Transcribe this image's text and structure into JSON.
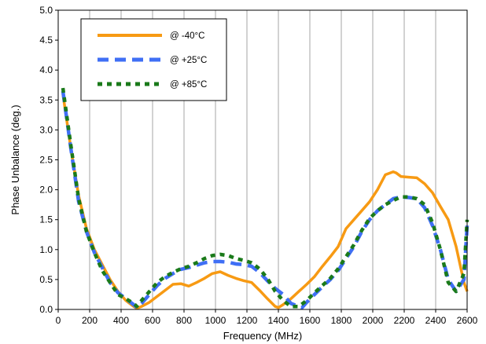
{
  "chart_data": {
    "type": "line",
    "title": "",
    "xlabel": "Frequency (MHz)",
    "ylabel": "Phase Unbalance (deg.)",
    "xlim": [
      0,
      2600
    ],
    "ylim": [
      0,
      5.0
    ],
    "x_ticks": [
      "0",
      "200",
      "400",
      "600",
      "800",
      "1000",
      "1200",
      "1400",
      "1600",
      "1800",
      "2000",
      "2200",
      "2400",
      "2600"
    ],
    "y_ticks": [
      "0.0",
      "0.5",
      "1.0",
      "1.5",
      "2.0",
      "2.5",
      "3.0",
      "3.5",
      "4.0",
      "4.5",
      "5.0"
    ],
    "grid": "vertical",
    "legend_position": "top-left",
    "series": [
      {
        "name": "@ -40°C",
        "color": "#f79a13",
        "style": "solid",
        "x": [
          30,
          80,
          130,
          180,
          230,
          280,
          330,
          380,
          430,
          480,
          500,
          530,
          580,
          630,
          680,
          730,
          780,
          830,
          880,
          930,
          980,
          1030,
          1080,
          1130,
          1180,
          1230,
          1280,
          1330,
          1380,
          1400,
          1430,
          1480,
          1530,
          1580,
          1630,
          1680,
          1730,
          1780,
          1830,
          1880,
          1930,
          1980,
          2030,
          2080,
          2130,
          2150,
          2180,
          2230,
          2280,
          2330,
          2380,
          2430,
          2480,
          2530,
          2580,
          2600
        ],
        "y": [
          3.6,
          2.7,
          1.9,
          1.35,
          1.0,
          0.75,
          0.5,
          0.3,
          0.15,
          0.05,
          0.02,
          0.05,
          0.12,
          0.22,
          0.32,
          0.42,
          0.43,
          0.39,
          0.45,
          0.52,
          0.6,
          0.63,
          0.57,
          0.52,
          0.48,
          0.45,
          0.32,
          0.18,
          0.05,
          0.03,
          0.08,
          0.18,
          0.3,
          0.42,
          0.55,
          0.72,
          0.88,
          1.05,
          1.35,
          1.5,
          1.65,
          1.8,
          2.0,
          2.25,
          2.3,
          2.28,
          2.22,
          2.21,
          2.2,
          2.1,
          1.95,
          1.72,
          1.5,
          1.05,
          0.45,
          0.3
        ]
      },
      {
        "name": "@ +25°C",
        "color": "#3f6ff5",
        "style": "dash",
        "x": [
          30,
          80,
          130,
          180,
          230,
          280,
          330,
          380,
          430,
          480,
          500,
          530,
          580,
          630,
          680,
          730,
          780,
          830,
          880,
          930,
          980,
          1030,
          1080,
          1130,
          1180,
          1230,
          1280,
          1330,
          1380,
          1430,
          1480,
          1530,
          1550,
          1580,
          1630,
          1680,
          1730,
          1780,
          1830,
          1880,
          1930,
          1980,
          2030,
          2080,
          2130,
          2180,
          2230,
          2280,
          2330,
          2380,
          2430,
          2480,
          2530,
          2580,
          2600
        ],
        "y": [
          3.65,
          2.7,
          1.8,
          1.3,
          0.95,
          0.7,
          0.45,
          0.28,
          0.18,
          0.08,
          0.03,
          0.1,
          0.25,
          0.4,
          0.52,
          0.6,
          0.67,
          0.7,
          0.74,
          0.78,
          0.8,
          0.8,
          0.79,
          0.76,
          0.75,
          0.72,
          0.62,
          0.48,
          0.35,
          0.25,
          0.1,
          0.05,
          0.03,
          0.12,
          0.25,
          0.38,
          0.5,
          0.65,
          0.85,
          1.05,
          1.3,
          1.5,
          1.65,
          1.75,
          1.85,
          1.88,
          1.87,
          1.85,
          1.7,
          1.4,
          1.0,
          0.5,
          0.3,
          0.5,
          1.4
        ]
      },
      {
        "name": "@ +85°C",
        "color": "#1a7a1a",
        "style": "dot",
        "x": [
          30,
          80,
          130,
          180,
          230,
          280,
          330,
          380,
          430,
          480,
          500,
          530,
          580,
          630,
          680,
          730,
          780,
          830,
          880,
          930,
          980,
          1030,
          1080,
          1130,
          1180,
          1230,
          1280,
          1330,
          1380,
          1430,
          1480,
          1530,
          1580,
          1630,
          1680,
          1730,
          1780,
          1830,
          1880,
          1930,
          1980,
          2030,
          2080,
          2130,
          2180,
          2230,
          2280,
          2330,
          2380,
          2430,
          2480,
          2530,
          2580,
          2600
        ],
        "y": [
          3.7,
          2.75,
          1.85,
          1.3,
          0.95,
          0.65,
          0.45,
          0.25,
          0.18,
          0.1,
          0.05,
          0.15,
          0.3,
          0.45,
          0.55,
          0.62,
          0.68,
          0.72,
          0.78,
          0.85,
          0.9,
          0.92,
          0.9,
          0.85,
          0.82,
          0.78,
          0.68,
          0.52,
          0.3,
          0.15,
          0.05,
          0.05,
          0.15,
          0.28,
          0.4,
          0.52,
          0.68,
          0.88,
          1.08,
          1.32,
          1.52,
          1.65,
          1.75,
          1.82,
          1.88,
          1.88,
          1.85,
          1.75,
          1.45,
          1.0,
          0.45,
          0.3,
          0.6,
          1.5
        ]
      }
    ]
  }
}
